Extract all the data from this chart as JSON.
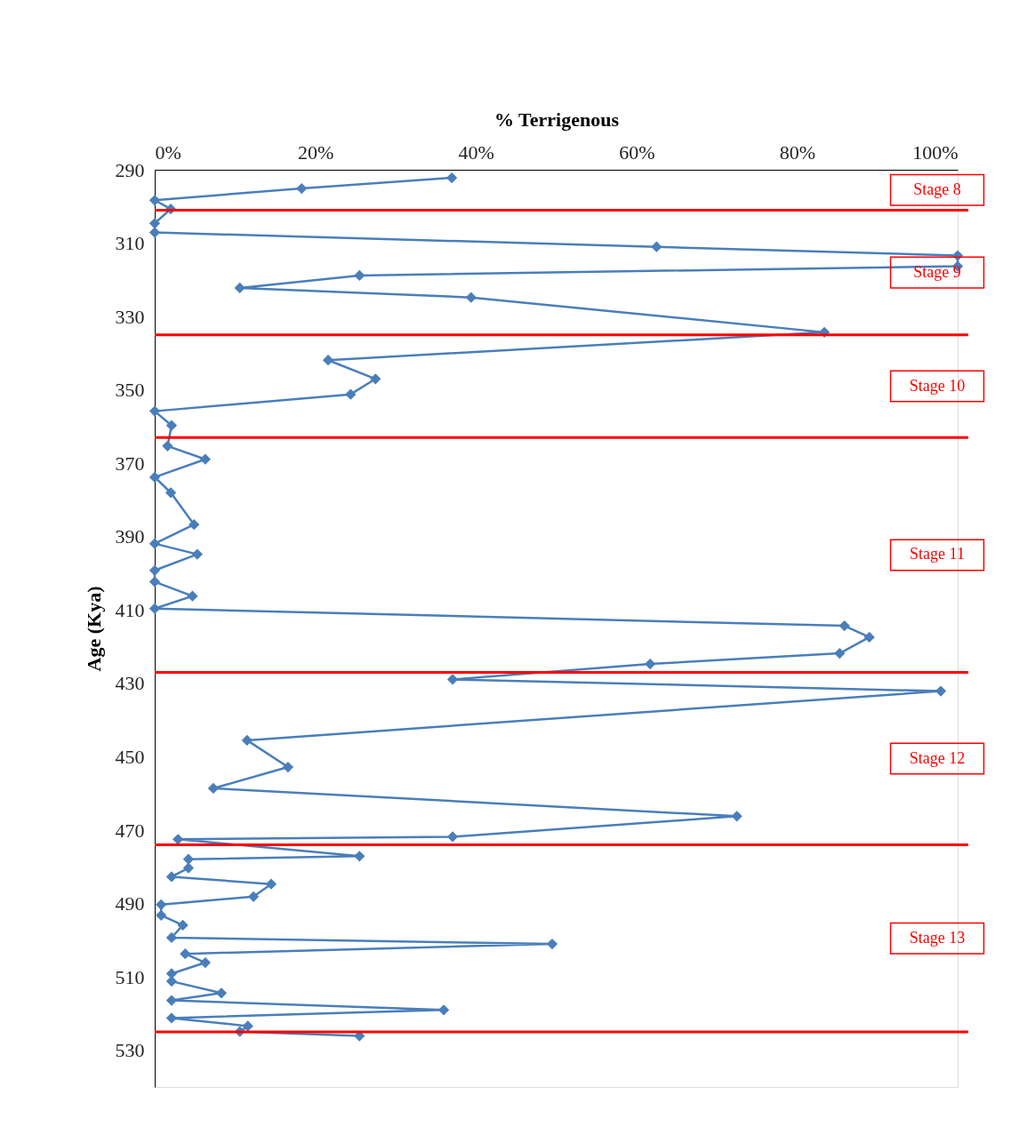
{
  "chart_data": {
    "type": "line",
    "xlabel": "% Terrigenous",
    "ylabel": "Age (Kya)",
    "xlim": [
      0,
      100
    ],
    "xticks": [
      {
        "value": 0,
        "label": "0%"
      },
      {
        "value": 20,
        "label": "20%"
      },
      {
        "value": 40,
        "label": "40%"
      },
      {
        "value": 60,
        "label": "60%"
      },
      {
        "value": 80,
        "label": "80%"
      },
      {
        "value": 100,
        "label": "100%"
      }
    ],
    "ylim": [
      540,
      290
    ],
    "yticks": [
      290,
      310,
      330,
      350,
      370,
      390,
      410,
      430,
      450,
      470,
      490,
      510,
      530
    ],
    "grid": false,
    "marker": "diamond",
    "line_style": "solid",
    "series": [
      {
        "color": "#4a7ebb",
        "x": [
          37,
          18.3,
          0,
          2,
          0,
          0,
          62.5,
          100,
          100,
          25.5,
          10.6,
          39.4,
          83.4,
          21.6,
          27.5,
          24.4,
          0,
          2.1,
          1.6,
          6.3,
          0,
          2,
          4.9,
          0,
          5.3,
          0,
          0,
          4.7,
          0,
          85.9,
          89,
          85.3,
          61.7,
          37.1,
          97.9,
          11.5,
          16.6,
          7.3,
          72.5,
          37.1,
          2.9,
          25.5,
          4.2,
          4.2,
          2.1,
          14.5,
          12.3,
          0.8,
          0.8,
          3.5,
          2.1,
          49.5,
          3.8,
          6.3,
          2.1,
          2.1,
          8.3,
          2.1,
          36,
          2.1,
          11.6,
          10.6,
          25.5
        ],
        "values": [
          292.2,
          295.1,
          298.3,
          300.7,
          304.6,
          307.1,
          311,
          313.4,
          316.3,
          318.8,
          322.2,
          324.8,
          334.3,
          341.9,
          347,
          351.2,
          355.8,
          359.7,
          365.3,
          368.9,
          373.8,
          378,
          386.7,
          391.9,
          394.8,
          399.2,
          402.3,
          406.2,
          409.6,
          414.3,
          417.4,
          421.8,
          424.7,
          428.9,
          432.1,
          445.5,
          452.8,
          458.6,
          466.2,
          471.8,
          472.5,
          477.1,
          477.9,
          480.3,
          482.7,
          484.7,
          488.1,
          490.3,
          493.2,
          495.9,
          499.3,
          501,
          503.7,
          506.1,
          509.1,
          511.2,
          514.4,
          516.4,
          519,
          521.2,
          523.4,
          524.9,
          526.1
        ]
      }
    ],
    "ref_lines": [
      {
        "axis": "y",
        "value": 301,
        "color": "#ff0000"
      },
      {
        "axis": "y",
        "value": 335,
        "color": "#ff0000"
      },
      {
        "axis": "y",
        "value": 363,
        "color": "#ff0000"
      },
      {
        "axis": "y",
        "value": 427,
        "color": "#ff0000"
      },
      {
        "axis": "y",
        "value": 474,
        "color": "#ff0000"
      },
      {
        "axis": "y",
        "value": 525,
        "color": "#ff0000"
      }
    ],
    "annotations": [
      "Stage 8",
      "Stage 9",
      "Stage 10",
      "Stage 11",
      "Stage 12",
      "Stage 13"
    ]
  }
}
